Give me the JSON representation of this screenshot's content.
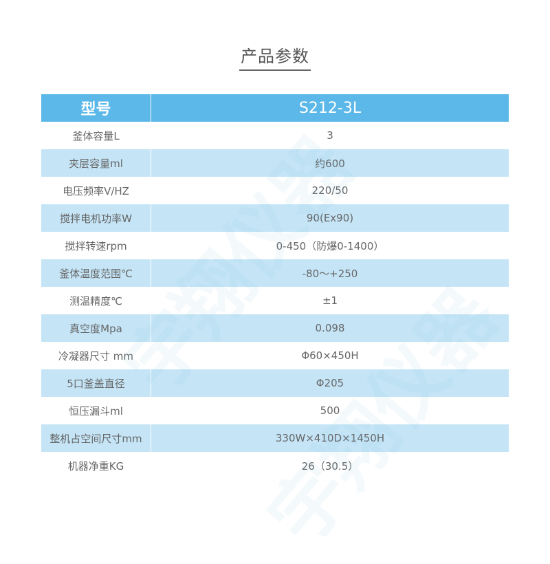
{
  "title": "产品参数",
  "watermark": "宇翔仪器",
  "header": {
    "key": "型号",
    "value": "S212-3L"
  },
  "rows": [
    {
      "key": "釜体容量L",
      "value": "3"
    },
    {
      "key": "夹层容量ml",
      "value": "约600"
    },
    {
      "key": "电压频率V/HZ",
      "value": "220/50"
    },
    {
      "key": "搅拌电机功率W",
      "value": "90(Ex90)"
    },
    {
      "key": "搅拌转速rpm",
      "value": "0-450（防爆0-1400）"
    },
    {
      "key": "釜体温度范围℃",
      "value": "-80～+250"
    },
    {
      "key": "测温精度℃",
      "value": "±1"
    },
    {
      "key": "真空度Mpa",
      "value": "0.098"
    },
    {
      "key": "冷凝器尺寸 mm",
      "value": "Φ60×450H"
    },
    {
      "key": "5口釜盖直径",
      "value": "Φ205"
    },
    {
      "key": "恒压漏斗ml",
      "value": "500"
    },
    {
      "key": "整机占空间尺寸mm",
      "value": "330W×410D×1450H"
    },
    {
      "key": "机器净重KG",
      "value": "26（30.5）"
    }
  ],
  "colors": {
    "header": "#5bb8e8",
    "stripe": "#c5e5f7",
    "text": "#666666"
  }
}
